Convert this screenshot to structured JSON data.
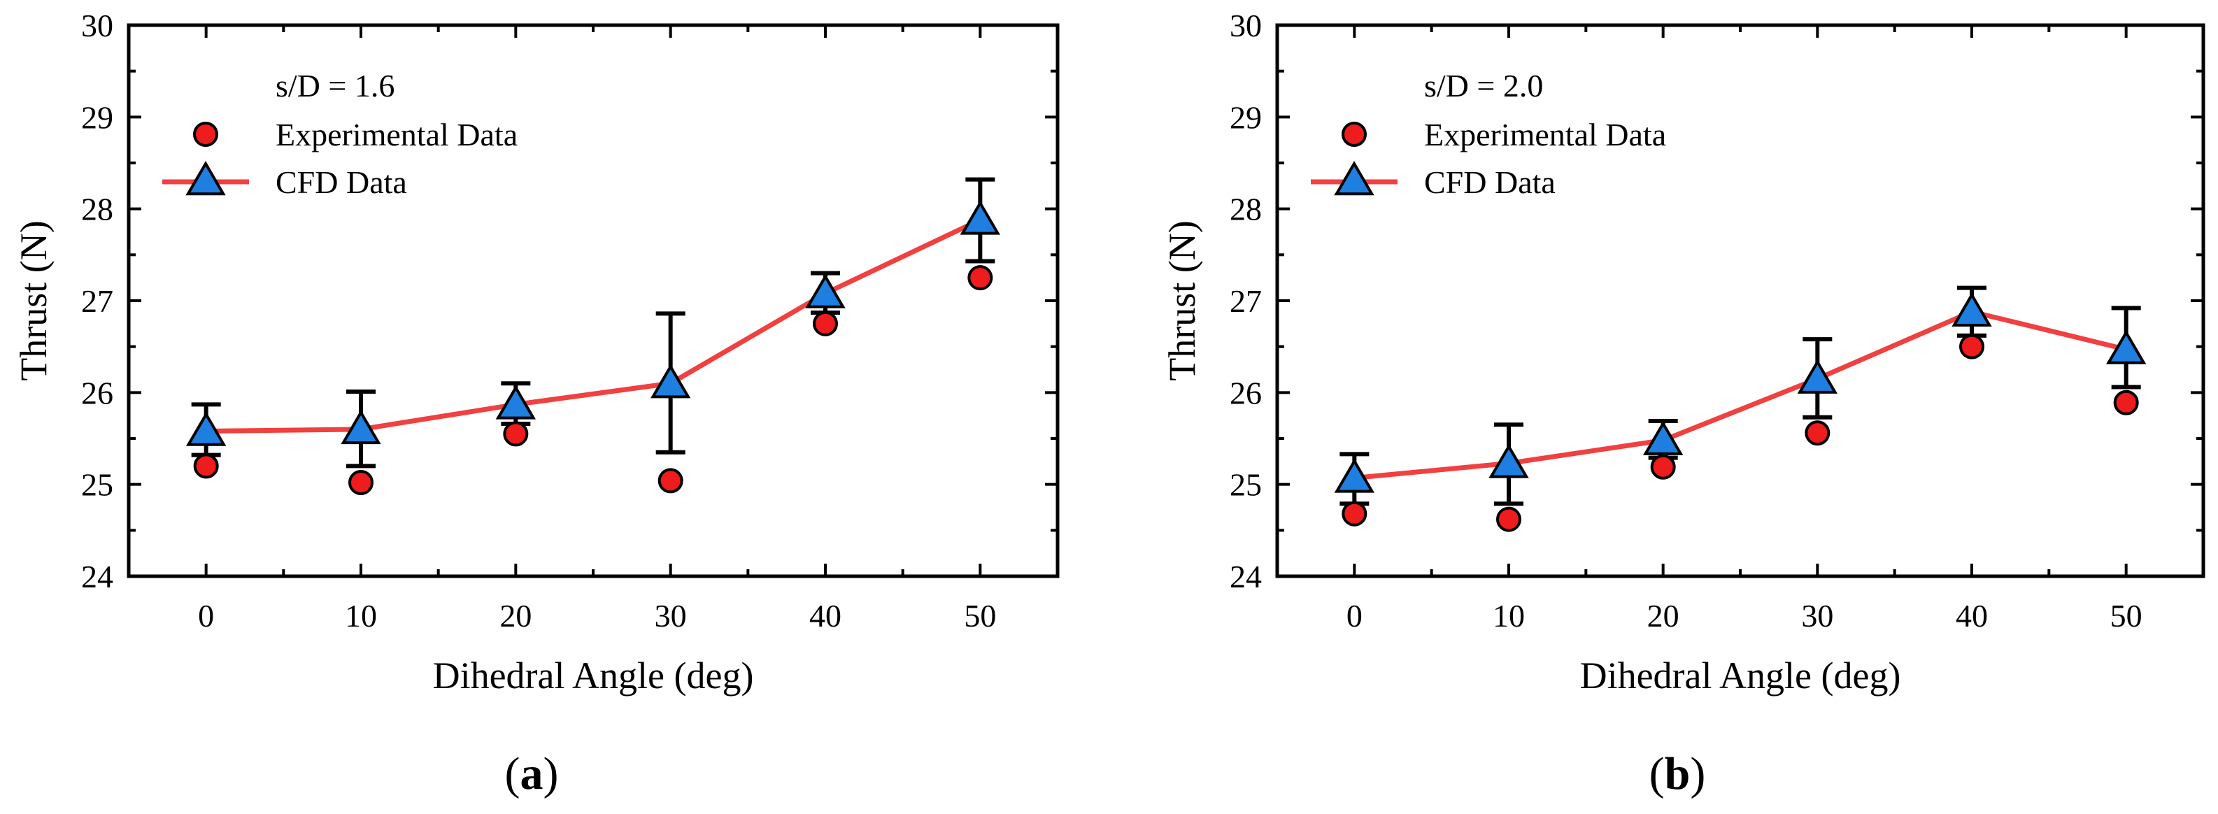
{
  "chart_data": [
    {
      "type": "line",
      "panel_label": "a",
      "annotation": "s/D = 1.6",
      "xlabel": "Dihedral Angle (deg)",
      "ylabel": "Thrust (N)",
      "xlim": [
        -5,
        55
      ],
      "ylim": [
        24,
        30
      ],
      "x_ticks": [
        0,
        10,
        20,
        30,
        40,
        50
      ],
      "y_ticks": [
        24,
        25,
        26,
        27,
        28,
        29,
        30
      ],
      "legend": [
        "Experimental Data",
        "CFD Data"
      ],
      "series": [
        {
          "name": "Experimental Data",
          "marker": "circle",
          "color": "#ee1c1c",
          "x": [
            0,
            10,
            20,
            30,
            40,
            50
          ],
          "y": [
            25.2,
            25.02,
            25.55,
            25.04,
            26.75,
            27.25
          ]
        },
        {
          "name": "CFD Data",
          "marker": "triangle",
          "color": "#1e7fe0",
          "line_color": "#f04040",
          "x": [
            0,
            10,
            20,
            30,
            40,
            50
          ],
          "y": [
            25.58,
            25.6,
            25.87,
            26.1,
            27.08,
            27.88
          ],
          "error_low": [
            25.32,
            25.2,
            25.66,
            25.35,
            26.87,
            27.43
          ],
          "error_high": [
            25.87,
            26.01,
            26.1,
            26.86,
            27.3,
            28.32
          ]
        }
      ]
    },
    {
      "type": "line",
      "panel_label": "b",
      "annotation": "s/D = 2.0",
      "xlabel": "Dihedral Angle (deg)",
      "ylabel": "Thrust (N)",
      "xlim": [
        -5,
        55
      ],
      "ylim": [
        24,
        30
      ],
      "x_ticks": [
        0,
        10,
        20,
        30,
        40,
        50
      ],
      "y_ticks": [
        24,
        25,
        26,
        27,
        28,
        29,
        30
      ],
      "legend": [
        "Experimental Data",
        "CFD Data"
      ],
      "series": [
        {
          "name": "Experimental Data",
          "marker": "circle",
          "color": "#ee1c1c",
          "x": [
            0,
            10,
            20,
            30,
            40,
            50
          ],
          "y": [
            24.68,
            24.62,
            25.19,
            25.56,
            26.5,
            25.89
          ]
        },
        {
          "name": "CFD Data",
          "marker": "triangle",
          "color": "#1e7fe0",
          "line_color": "#f04040",
          "x": [
            0,
            10,
            20,
            30,
            40,
            50
          ],
          "y": [
            25.07,
            25.23,
            25.48,
            26.15,
            26.88,
            26.47
          ],
          "error_low": [
            24.79,
            24.79,
            25.29,
            25.73,
            26.62,
            26.06
          ],
          "error_high": [
            25.33,
            25.65,
            25.69,
            26.58,
            27.14,
            26.92
          ]
        }
      ]
    }
  ]
}
